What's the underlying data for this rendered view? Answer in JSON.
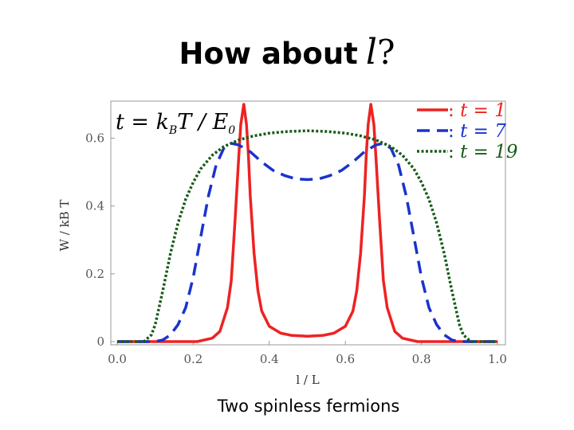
{
  "slide": {
    "title_text": "How about",
    "title_var": "l",
    "title_qmark": "?",
    "caption": "Two spinless fermions"
  },
  "chart_data": {
    "type": "line",
    "xlabel": "l / L",
    "ylabel": "W / kB T",
    "xlim": [
      0,
      1
    ],
    "ylim": [
      0,
      0.7
    ],
    "x_ticks": [
      "0.0",
      "0.2",
      "0.4",
      "0.6",
      "0.8",
      "1.0"
    ],
    "y_ticks": [
      "0",
      "0.2",
      "0.4",
      "0.6"
    ],
    "annotation": "t = kBT / E0",
    "legend_position": "top-right",
    "grid": false,
    "series": [
      {
        "name": "t = 1",
        "color": "#ee2222",
        "dash": "solid",
        "x": [
          0,
          0.21,
          0.25,
          0.27,
          0.29,
          0.3,
          0.31,
          0.32,
          0.325,
          0.333,
          0.34,
          0.345,
          0.35,
          0.36,
          0.37,
          0.38,
          0.4,
          0.43,
          0.46,
          0.5,
          0.54,
          0.57,
          0.6,
          0.62,
          0.63,
          0.64,
          0.65,
          0.655,
          0.66,
          0.667,
          0.675,
          0.68,
          0.69,
          0.7,
          0.71,
          0.73,
          0.75,
          0.79,
          1.0
        ],
        "y": [
          0,
          0,
          0.01,
          0.03,
          0.1,
          0.18,
          0.36,
          0.55,
          0.64,
          0.7,
          0.64,
          0.55,
          0.43,
          0.26,
          0.15,
          0.09,
          0.045,
          0.025,
          0.018,
          0.016,
          0.018,
          0.025,
          0.045,
          0.09,
          0.15,
          0.26,
          0.43,
          0.55,
          0.64,
          0.7,
          0.64,
          0.55,
          0.36,
          0.18,
          0.1,
          0.03,
          0.01,
          0,
          0
        ]
      },
      {
        "name": "t = 7",
        "color": "#1a33cc",
        "dash": "long",
        "x": [
          0,
          0.1,
          0.12,
          0.14,
          0.16,
          0.18,
          0.2,
          0.22,
          0.24,
          0.26,
          0.28,
          0.3,
          0.32,
          0.35,
          0.38,
          0.41,
          0.44,
          0.47,
          0.5,
          0.53,
          0.56,
          0.59,
          0.62,
          0.65,
          0.68,
          0.7,
          0.72,
          0.74,
          0.76,
          0.78,
          0.8,
          0.82,
          0.84,
          0.86,
          0.88,
          0.9,
          1.0
        ],
        "y": [
          0,
          0,
          0.005,
          0.02,
          0.05,
          0.1,
          0.19,
          0.31,
          0.43,
          0.52,
          0.57,
          0.585,
          0.58,
          0.56,
          0.53,
          0.505,
          0.49,
          0.48,
          0.478,
          0.48,
          0.49,
          0.505,
          0.53,
          0.56,
          0.58,
          0.585,
          0.57,
          0.52,
          0.43,
          0.31,
          0.19,
          0.1,
          0.05,
          0.02,
          0.005,
          0,
          0
        ]
      },
      {
        "name": "t = 19",
        "color": "#1a5c1a",
        "dash": "dotted",
        "x": [
          0,
          0.07,
          0.09,
          0.1,
          0.12,
          0.14,
          0.16,
          0.18,
          0.2,
          0.22,
          0.25,
          0.28,
          0.32,
          0.36,
          0.4,
          0.45,
          0.5,
          0.55,
          0.6,
          0.64,
          0.68,
          0.72,
          0.75,
          0.78,
          0.8,
          0.82,
          0.84,
          0.86,
          0.88,
          0.9,
          0.91,
          0.93,
          1.0
        ],
        "y": [
          0,
          0,
          0.02,
          0.05,
          0.15,
          0.26,
          0.35,
          0.42,
          0.47,
          0.51,
          0.55,
          0.575,
          0.595,
          0.607,
          0.615,
          0.62,
          0.622,
          0.62,
          0.615,
          0.607,
          0.595,
          0.575,
          0.55,
          0.51,
          0.47,
          0.42,
          0.35,
          0.26,
          0.15,
          0.05,
          0.02,
          0,
          0
        ]
      }
    ]
  }
}
